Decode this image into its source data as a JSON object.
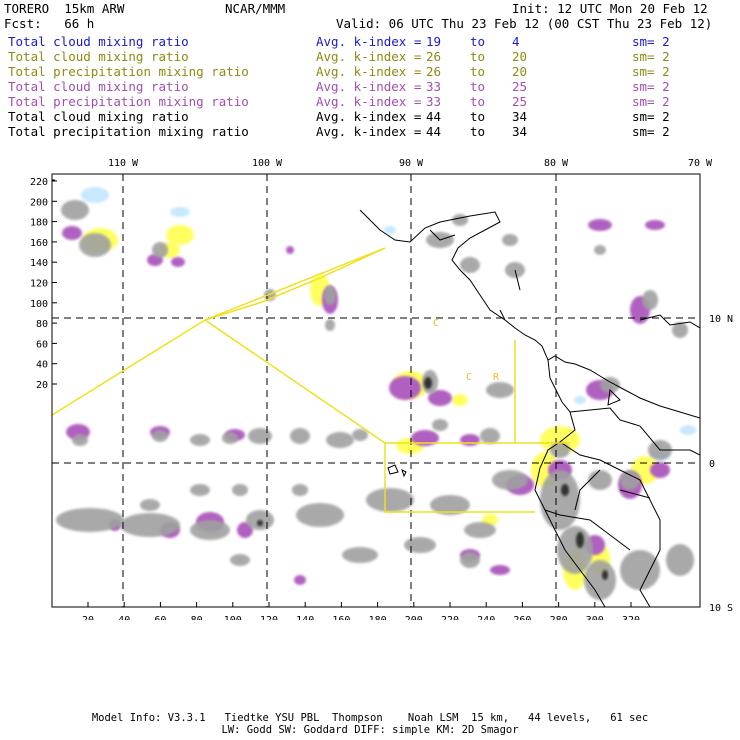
{
  "header": {
    "model": "TORERO  15km ARW",
    "org": "NCAR/MMM",
    "init": "Init: 12 UTC Mon 20 Feb 12",
    "fcst": "Fcst:   66 h",
    "valid": "Valid: 06 UTC Thu 23 Feb 12 (00 CST Thu 23 Feb 12)"
  },
  "legend": [
    {
      "field": "Total cloud mixing ratio",
      "avg": "Avg. k-index =",
      "a": "19",
      "to": "to",
      "b": "4",
      "sm": "sm= 2",
      "color": "#1a1acc"
    },
    {
      "field": "Total cloud mixing ratio",
      "avg": "Avg. k-index =",
      "a": "26",
      "to": "to",
      "b": "20",
      "sm": "sm= 2",
      "color": "#8c8c14"
    },
    {
      "field": "Total precipitation mixing ratio",
      "avg": "Avg. k-index =",
      "a": "26",
      "to": "to",
      "b": "20",
      "sm": "sm= 2",
      "color": "#8c8c14"
    },
    {
      "field": "Total cloud mixing ratio",
      "avg": "Avg. k-index =",
      "a": "33",
      "to": "to",
      "b": "25",
      "sm": "sm= 2",
      "color": "#a050b0"
    },
    {
      "field": "Total precipitation mixing ratio",
      "avg": "Avg. k-index =",
      "a": "33",
      "to": "to",
      "b": "25",
      "sm": "sm= 2",
      "color": "#a050b0"
    },
    {
      "field": "Total cloud mixing ratio",
      "avg": "Avg. k-index =",
      "a": "44",
      "to": "to",
      "b": "34",
      "sm": "sm= 2",
      "color": "#000000"
    },
    {
      "field": "Total precipitation mixing ratio",
      "avg": "Avg. k-index =",
      "a": "44",
      "to": "to",
      "b": "34",
      "sm": "sm= 2",
      "color": "#000000"
    }
  ],
  "map": {
    "lon_labels": [
      "110 W",
      "100 W",
      "90 W",
      "80 W",
      "70 W"
    ],
    "lat_labels": [
      "10 N",
      "0",
      "10 S"
    ],
    "y_ticks": [
      "220",
      "200",
      "180",
      "160",
      "140",
      "120",
      "100",
      "80",
      "60",
      "40",
      "20"
    ],
    "x_ticks": [
      "20",
      "40",
      "60",
      "80",
      "100",
      "120",
      "140",
      "160",
      "180",
      "200",
      "220",
      "240",
      "260",
      "280",
      "300",
      "320"
    ],
    "boundary_labels": [
      "C",
      "R"
    ],
    "colors": {
      "gray": "#a0a0a0",
      "purple": "#b060c0",
      "yellow": "#ffff60",
      "lightblue": "#c8e8ff",
      "boundary": "#f0e020"
    }
  },
  "footer": {
    "line1": "Model Info: V3.3.1   Tiedtke YSU PBL  Thompson    Noah LSM  15 km,   44 levels,   61 sec",
    "line2": "LW: Godd SW: Goddard DIFF: simple KM: 2D Smagor"
  }
}
